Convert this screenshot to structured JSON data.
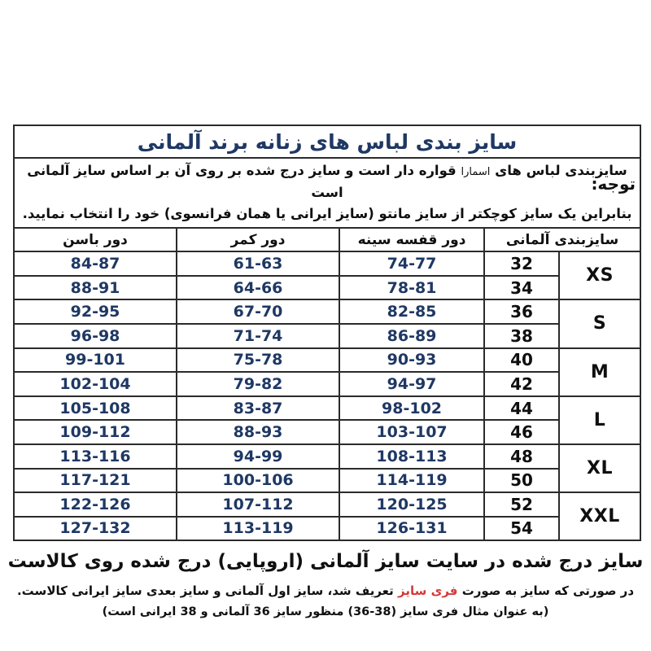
{
  "title": "سایز بندی لباس های زنانه برند آلمانی",
  "note": {
    "label": "توجه:",
    "line1_prefix": "سایزبندی لباس های ",
    "line1_brand": "اسمارا",
    "line1_suffix": " قواره دار است و سایز درج شده بر روی آن بر اساس سایز آلمانی است",
    "line2": "بنابراین یک سایز کوچکتر از سایز مانتو (سایز ایرانی یا همان فرانسوی) خود را انتخاب نمایید."
  },
  "table": {
    "headers": {
      "german_size": "سایزبندی آلمانی",
      "chest": "دور قفسه سینه",
      "waist": "دور کمر",
      "hip": "دور باسن"
    },
    "size_groups": [
      {
        "label": "XS"
      },
      {
        "label": "S"
      },
      {
        "label": "M"
      },
      {
        "label": "L"
      },
      {
        "label": "XL"
      },
      {
        "label": "XXL"
      }
    ],
    "rows": [
      {
        "size": "32",
        "chest": "74-77",
        "waist": "61-63",
        "hip": "84-87"
      },
      {
        "size": "34",
        "chest": "78-81",
        "waist": "64-66",
        "hip": "88-91"
      },
      {
        "size": "36",
        "chest": "82-85",
        "waist": "67-70",
        "hip": "92-95"
      },
      {
        "size": "38",
        "chest": "86-89",
        "waist": "71-74",
        "hip": "96-98"
      },
      {
        "size": "40",
        "chest": "90-93",
        "waist": "75-78",
        "hip": "99-101"
      },
      {
        "size": "42",
        "chest": "94-97",
        "waist": "79-82",
        "hip": "102-104"
      },
      {
        "size": "44",
        "chest": "98-102",
        "waist": "83-87",
        "hip": "105-108"
      },
      {
        "size": "46",
        "chest": "103-107",
        "waist": "88-93",
        "hip": "109-112"
      },
      {
        "size": "48",
        "chest": "108-113",
        "waist": "94-99",
        "hip": "113-116"
      },
      {
        "size": "50",
        "chest": "114-119",
        "waist": "100-106",
        "hip": "117-121"
      },
      {
        "size": "52",
        "chest": "120-125",
        "waist": "107-112",
        "hip": "122-126"
      },
      {
        "size": "54",
        "chest": "126-131",
        "waist": "113-119",
        "hip": "127-132"
      }
    ]
  },
  "footer": {
    "line1": "سایز درج شده در سایت سایز آلمانی (اروپایی) درج شده روی کالاست",
    "line2_before": "در صورتی که سایز به صورت ",
    "line2_highlight": "فری سایز",
    "line2_after": " تعریف شد، سایز اول آلمانی و سایز بعدی سایز ایرانی کالاست.",
    "line3": "(به عنوان مثال فری سایز (38-36) منظور سایز 36 آلمانی و 38 ایرانی است)"
  },
  "colors": {
    "title_navy": "#1f3864",
    "value_navy": "#1f3864",
    "text_black": "#101010",
    "highlight_red": "#d43a3a"
  }
}
